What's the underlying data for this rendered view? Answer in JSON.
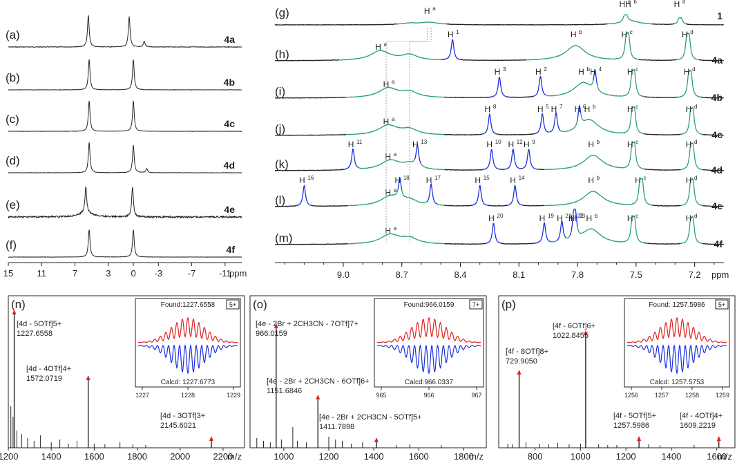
{
  "chart_data": [
    {
      "type": "line",
      "title": "",
      "xlabel": "ppm",
      "x_ticks": [
        "15",
        "11",
        "7",
        "3",
        "0",
        "-3",
        "-7",
        "-11"
      ],
      "xlim": [
        15,
        -13
      ],
      "rows": [
        {
          "label": "(a)",
          "compound": "4a",
          "peaks": [
            5.4,
            0.5,
            -1.3
          ]
        },
        {
          "label": "(b)",
          "compound": "4b",
          "peaks": [
            5.3,
            0.0
          ]
        },
        {
          "label": "(c)",
          "compound": "4c",
          "peaks": [
            5.3,
            0.0
          ]
        },
        {
          "label": "(d)",
          "compound": "4d",
          "peaks": [
            5.3,
            0.0,
            -1.6
          ]
        },
        {
          "label": "(e)",
          "compound": "4e",
          "peaks": [
            5.7,
            0.1
          ]
        },
        {
          "label": "(f)",
          "compound": "4f",
          "peaks": [
            5.3,
            0.0
          ]
        }
      ]
    },
    {
      "type": "line",
      "title": "",
      "xlabel": "ppm",
      "x_ticks": [
        "9.0",
        "8.7",
        "8.4",
        "8.1",
        "7.8",
        "7.5",
        "7.2"
      ],
      "xlim": [
        9.35,
        7.05
      ],
      "rows": [
        {
          "label": "(g)",
          "compound": "1",
          "annotations": [
            {
              "t": "H",
              "s": "a",
              "x": 8.56
            },
            {
              "t": "H",
              "s": "c",
              "x": 7.56
            },
            {
              "t": "H",
              "s": "b",
              "x": 7.53
            },
            {
              "t": "H",
              "s": "d",
              "x": 7.28
            }
          ]
        },
        {
          "label": "(h)",
          "compound": "4a",
          "annotations": [
            {
              "t": "H",
              "s": "a",
              "x": 8.81
            },
            {
              "t": "H",
              "s": "1",
              "x": 8.44
            },
            {
              "t": "H",
              "s": "b",
              "x": 7.81
            },
            {
              "t": "H",
              "s": "c",
              "x": 7.55
            },
            {
              "t": "H",
              "s": "d",
              "x": 7.24
            }
          ]
        },
        {
          "label": "(i)",
          "compound": "4b",
          "annotations": [
            {
              "t": "H",
              "s": "a",
              "x": 8.77
            },
            {
              "t": "H",
              "s": "3",
              "x": 8.2
            },
            {
              "t": "H",
              "s": "2",
              "x": 7.99
            },
            {
              "t": "H",
              "s": "b",
              "x": 7.77
            },
            {
              "t": "H",
              "s": "4",
              "x": 7.71
            },
            {
              "t": "H",
              "s": "c",
              "x": 7.52
            },
            {
              "t": "H",
              "s": "d",
              "x": 7.23
            }
          ]
        },
        {
          "label": "(j)",
          "compound": "4c",
          "annotations": [
            {
              "t": "H",
              "s": "a",
              "x": 8.77
            },
            {
              "t": "H",
              "s": "8",
              "x": 8.25
            },
            {
              "t": "H",
              "s": "5",
              "x": 7.98
            },
            {
              "t": "H",
              "s": "7",
              "x": 7.91
            },
            {
              "t": "H",
              "s": "6",
              "x": 7.79
            },
            {
              "t": "H",
              "s": "b",
              "x": 7.74
            },
            {
              "t": "H",
              "s": "c",
              "x": 7.52
            },
            {
              "t": "H",
              "s": "d",
              "x": 7.22
            }
          ]
        },
        {
          "label": "(k)",
          "compound": "4d",
          "annotations": [
            {
              "t": "H",
              "s": "11",
              "x": 8.95
            },
            {
              "t": "H",
              "s": "a",
              "x": 8.76
            },
            {
              "t": "H",
              "s": "13",
              "x": 8.62
            },
            {
              "t": "H",
              "s": "10",
              "x": 8.24
            },
            {
              "t": "H",
              "s": "12",
              "x": 8.13
            },
            {
              "t": "H",
              "s": "9",
              "x": 8.05
            },
            {
              "t": "H",
              "s": "b",
              "x": 7.72
            },
            {
              "t": "H",
              "s": "c",
              "x": 7.52
            },
            {
              "t": "H",
              "s": "d",
              "x": 7.22
            }
          ]
        },
        {
          "label": "(l)",
          "compound": "4e",
          "annotations": [
            {
              "t": "H",
              "s": "16",
              "x": 9.2
            },
            {
              "t": "H",
              "s": "a",
              "x": 8.76
            },
            {
              "t": "H",
              "s": "18",
              "x": 8.71
            },
            {
              "t": "H",
              "s": "17",
              "x": 8.55
            },
            {
              "t": "H",
              "s": "15",
              "x": 8.3
            },
            {
              "t": "H",
              "s": "14",
              "x": 8.12
            },
            {
              "t": "H",
              "s": "b",
              "x": 7.72
            },
            {
              "t": "H",
              "s": "c",
              "x": 7.48
            },
            {
              "t": "H",
              "s": "d",
              "x": 7.22
            }
          ]
        },
        {
          "label": "(m)",
          "compound": "4f",
          "annotations": [
            {
              "t": "H",
              "s": "a",
              "x": 8.76
            },
            {
              "t": "H",
              "s": "20",
              "x": 8.23
            },
            {
              "t": "H",
              "s": "19",
              "x": 7.97
            },
            {
              "t": "H",
              "s": "21",
              "x": 7.88
            },
            {
              "t": "H",
              "s": "22",
              "x": 7.82
            },
            {
              "t": "H",
              "s": "23",
              "x": 7.81
            },
            {
              "t": "H",
              "s": "b",
              "x": 7.73
            },
            {
              "t": "H",
              "s": "c",
              "x": 7.52
            },
            {
              "t": "H",
              "s": "d",
              "x": 7.22
            }
          ]
        }
      ]
    },
    {
      "type": "bar",
      "label": "(n)",
      "xlabel": "m/z",
      "x_ticks": [
        "1200",
        "1400",
        "1600",
        "1800",
        "2000",
        "2200"
      ],
      "xlim": [
        1200,
        2300
      ],
      "peaks": [
        {
          "mz": 1227.6558,
          "label": "[4d - 5OTf]5+",
          "value": "1227.6558"
        },
        {
          "mz": 1572.0719,
          "label": "[4d - 4OTf]4+",
          "value": "1572.0719"
        },
        {
          "mz": 2145.6021,
          "label": "[4d - 3OTf]3+",
          "value": "2145.6021"
        }
      ],
      "inset": {
        "charge": "5+",
        "found": "Found:1227.6558",
        "calcd": "Calcd: 1227.6773",
        "ticks": [
          "1227",
          "1228",
          "1229"
        ]
      }
    },
    {
      "type": "bar",
      "label": "(o)",
      "xlabel": "m/z",
      "x_ticks": [
        "1000",
        "1200",
        "1400",
        "1600",
        "1800"
      ],
      "xlim": [
        850,
        1900
      ],
      "peaks": [
        {
          "mz": 966.0159,
          "label": "[4e - 2Br + 2CH3CN - 7OTf]7+",
          "value": "966.0159"
        },
        {
          "mz": 1151.6846,
          "label": "[4e - 2Br + 2CH3CN - 6OTf]6+",
          "value": "1151.6846"
        },
        {
          "mz": 1411.7898,
          "label": "[4e - 2Br + 2CH3CN - 5OTf]5+",
          "value": "1411.7898"
        }
      ],
      "inset": {
        "charge": "7+",
        "found": "Found:966.0159",
        "calcd": "Calcd:966.0337",
        "ticks": [
          "965",
          "966",
          "967"
        ]
      }
    },
    {
      "type": "bar",
      "label": "(p)",
      "xlabel": "m/z",
      "x_ticks": [
        "800",
        "1000",
        "1200",
        "1400",
        "1600"
      ],
      "xlim": [
        640,
        1680
      ],
      "peaks": [
        {
          "mz": 729.905,
          "label": "[4f - 8OTf]8+",
          "value": "729.9050"
        },
        {
          "mz": 1022.8455,
          "label": "[4f - 6OTf]6+",
          "value": "1022.8455"
        },
        {
          "mz": 1257.5986,
          "label": "[4f - 5OTf]5+",
          "value": "1257.5986"
        },
        {
          "mz": 1609.2219,
          "label": "[4f - 4OTf]4+",
          "value": "1609.2219"
        }
      ],
      "inset": {
        "charge": "5+",
        "found": "Found: 1257.5986",
        "calcd": "Calcd: 1257.5753",
        "ticks": [
          "1256",
          "1257",
          "1258",
          "1259"
        ]
      }
    }
  ],
  "colors": {
    "black": "#222222",
    "green": "#2aa36a",
    "blue": "#1a2fe0",
    "red": "#e02020",
    "grey": "#8a8a8a"
  }
}
